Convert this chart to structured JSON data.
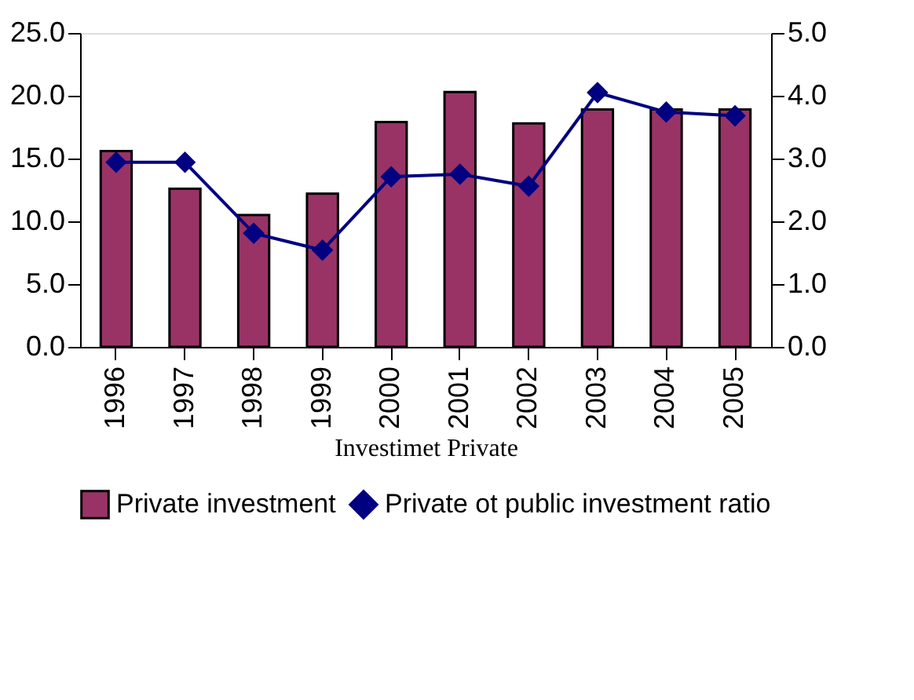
{
  "chart_data": {
    "type": "bar",
    "xlabel": "Investimet Private",
    "categories": [
      "1996",
      "1997",
      "1998",
      "1999",
      "2000",
      "2001",
      "2002",
      "2003",
      "2004",
      "2005"
    ],
    "series": [
      {
        "name": "Private investment",
        "color": "#993366",
        "values": [
          15.6,
          12.6,
          10.5,
          12.2,
          17.9,
          20.3,
          17.8,
          18.9,
          18.9,
          18.9
        ]
      },
      {
        "name": "Private ot public investment ratio",
        "type": "line",
        "axis": "y2",
        "color": "#000080",
        "marker": "diamond",
        "values": [
          2.94,
          2.94,
          1.81,
          1.54,
          2.71,
          2.75,
          2.56,
          4.05,
          3.74,
          3.68
        ]
      }
    ],
    "ylim": [
      0,
      25
    ],
    "yticks": [
      {
        "value": 0,
        "label": "0.0"
      },
      {
        "value": 5,
        "label": "5.0"
      },
      {
        "value": 10,
        "label": "10.0"
      },
      {
        "value": 15,
        "label": "15.0"
      },
      {
        "value": 20,
        "label": "20.0"
      },
      {
        "value": 25,
        "label": "25.0"
      }
    ],
    "y2lim": [
      0,
      5
    ],
    "y2ticks": [
      {
        "value": 0,
        "label": "0.0"
      },
      {
        "value": 1,
        "label": "1.0"
      },
      {
        "value": 2,
        "label": "2.0"
      },
      {
        "value": 3,
        "label": "3.0"
      },
      {
        "value": 4,
        "label": "4.0"
      },
      {
        "value": 5,
        "label": "5.0"
      }
    ],
    "grid": false,
    "legend": "bottom"
  }
}
